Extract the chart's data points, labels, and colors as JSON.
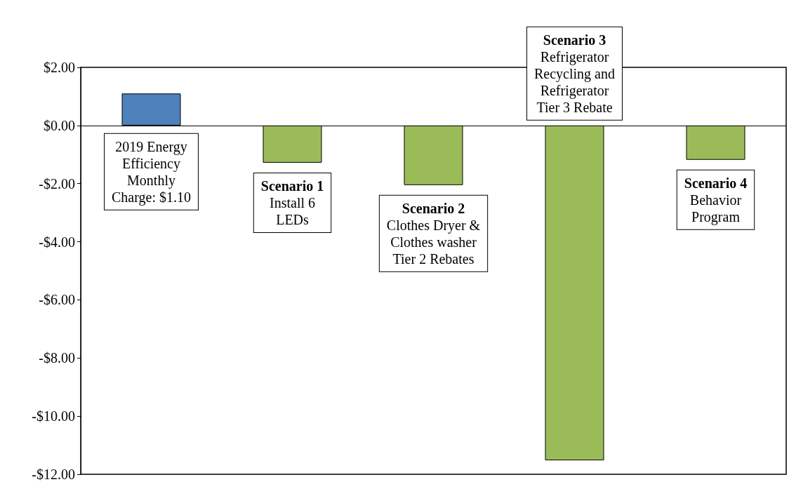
{
  "chart_data": {
    "type": "bar",
    "categories": [
      null,
      null,
      null,
      null,
      null
    ],
    "values": [
      1.1,
      -1.28,
      -2.05,
      -11.52,
      -1.18
    ],
    "colors": [
      "#4f81bd",
      "#9bbb59",
      "#9bbb59",
      "#9bbb59",
      "#9bbb59"
    ],
    "ylim": [
      -12,
      2
    ],
    "yticks": [
      {
        "value": -12,
        "label": "-$12.00"
      },
      {
        "value": -10,
        "label": "-$10.00"
      },
      {
        "value": -8,
        "label": "-$8.00"
      },
      {
        "value": -6,
        "label": "-$6.00"
      },
      {
        "value": -4,
        "label": "-$4.00"
      },
      {
        "value": -2,
        "label": "-$2.00"
      },
      {
        "value": 0,
        "label": "$0.00"
      },
      {
        "value": 2,
        "label": "$2.00"
      }
    ],
    "annotations": [
      "2019 Energy\nEfficiency\nMonthly\nCharge: $1.10",
      "Scenario 1\nInstall 6\nLEDs",
      "Scenario 2\nClothes Dryer &\nClothes washer\nTier 2 Rebates",
      "Scenario 3\nRefrigerator\nRecycling and\nRefrigerator\nTier 3 Rebate",
      "Scenario 4\nBehavior\nProgram"
    ]
  }
}
